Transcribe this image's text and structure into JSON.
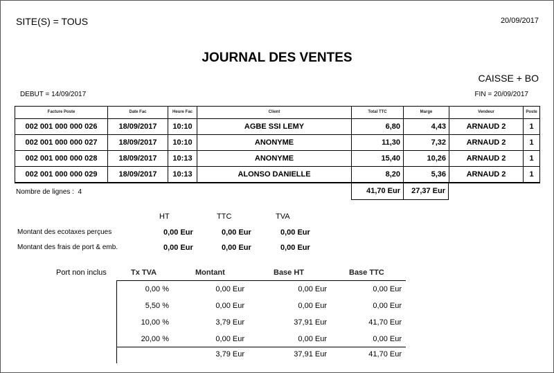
{
  "header": {
    "sites": "SITE(S) = TOUS",
    "date": "20/09/2017",
    "title": "JOURNAL DES VENTES",
    "subtitle": "CAISSE + BO",
    "debut": "DEBUT = 14/09/2017",
    "fin": "FIN = 20/09/2017"
  },
  "table": {
    "columns": [
      "Facture Poste",
      "Date Fac",
      "Heure Fac",
      "Client",
      "Total TTC",
      "Marge",
      "Vendeur",
      "Poste"
    ],
    "rows": [
      [
        "002 001 000 000 026",
        "18/09/2017",
        "10:10",
        "AGBE SSI LEMY",
        "6,80",
        "4,43",
        "ARNAUD 2",
        "1"
      ],
      [
        "002 001 000 000 027",
        "18/09/2017",
        "10:10",
        "ANONYME",
        "11,30",
        "7,32",
        "ARNAUD 2",
        "1"
      ],
      [
        "002 001 000 000 028",
        "18/09/2017",
        "10:13",
        "ANONYME",
        "15,40",
        "10,26",
        "ARNAUD 2",
        "1"
      ],
      [
        "002 001 000 000 029",
        "18/09/2017",
        "10:13",
        "ALONSO DANIELLE",
        "8,20",
        "5,36",
        "ARNAUD 2",
        "1"
      ]
    ],
    "nb_lignes_label": "Nombre de lignes :",
    "nb_lignes": "4",
    "total_ttc": "41,70 Eur",
    "total_marge": "27,37 Eur"
  },
  "taxes": {
    "headers": [
      "HT",
      "TTC",
      "TVA"
    ],
    "rows": [
      {
        "label": "Montant des ecotaxes perçues",
        "values": [
          "0,00 Eur",
          "0,00 Eur",
          "0,00 Eur"
        ]
      },
      {
        "label": "Montant  des frais de port & emb.",
        "values": [
          "0,00 Eur",
          "0,00 Eur",
          "0,00 Eur"
        ]
      }
    ]
  },
  "tva": {
    "label": "Port non inclus",
    "headers": [
      "Tx TVA",
      "Montant",
      "Base HT",
      "Base TTC"
    ],
    "rows": [
      [
        "0,00 %",
        "0,00 Eur",
        "0,00 Eur",
        "0,00 Eur"
      ],
      [
        "5,50 %",
        "0,00 Eur",
        "0,00 Eur",
        "0,00 Eur"
      ],
      [
        "10,00 %",
        "3,79 Eur",
        "37,91 Eur",
        "41,70 Eur"
      ],
      [
        "20,00 %",
        "0,00 Eur",
        "0,00 Eur",
        "0,00 Eur"
      ]
    ],
    "total": [
      "3,79 Eur",
      "37,91 Eur",
      "41,70 Eur"
    ]
  }
}
